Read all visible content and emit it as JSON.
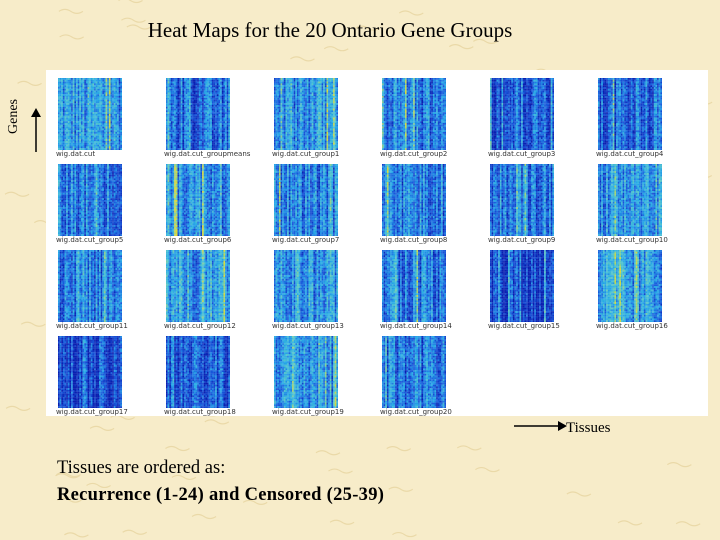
{
  "title": "Heat Maps for the 20 Ontario Gene Groups",
  "y_axis_label": "Genes",
  "x_axis_label": "Tissues",
  "note": {
    "line1": "Tissues are ordered as:",
    "line2": "Recurrence (1-24) and Censored (25-39)"
  },
  "heatmaps": [
    {
      "caption": "wig.dat.cut",
      "variant": 0
    },
    {
      "caption": "wig.dat.cut_groupmeans",
      "variant": 2
    },
    {
      "caption": "wig.dat.cut_group1",
      "variant": 0
    },
    {
      "caption": "wig.dat.cut_group2",
      "variant": 1
    },
    {
      "caption": "wig.dat.cut_group3",
      "variant": 2
    },
    {
      "caption": "wig.dat.cut_group4",
      "variant": 2
    },
    {
      "caption": "wig.dat.cut_group5",
      "variant": 1
    },
    {
      "caption": "wig.dat.cut_group6",
      "variant": 0
    },
    {
      "caption": "wig.dat.cut_group7",
      "variant": 1
    },
    {
      "caption": "wig.dat.cut_group8",
      "variant": 1
    },
    {
      "caption": "wig.dat.cut_group9",
      "variant": 1
    },
    {
      "caption": "wig.dat.cut_group10",
      "variant": 0
    },
    {
      "caption": "wig.dat.cut_group11",
      "variant": 1
    },
    {
      "caption": "wig.dat.cut_group12",
      "variant": 0
    },
    {
      "caption": "wig.dat.cut_group13",
      "variant": 0
    },
    {
      "caption": "wig.dat.cut_group14",
      "variant": 1
    },
    {
      "caption": "wig.dat.cut_group15",
      "variant": 3
    },
    {
      "caption": "wig.dat.cut_group16",
      "variant": 0
    },
    {
      "caption": "wig.dat.cut_group17",
      "variant": 3
    },
    {
      "caption": "wig.dat.cut_group18",
      "variant": 2
    },
    {
      "caption": "wig.dat.cut_group19",
      "variant": 0
    },
    {
      "caption": "wig.dat.cut_group20",
      "variant": 1
    }
  ],
  "colors": {
    "background": "#f7ecc9",
    "panel": "#ffffff",
    "heat_low": "#0a1fb0",
    "heat_mid": "#27a9e8",
    "heat_high": "#d9d93a"
  }
}
